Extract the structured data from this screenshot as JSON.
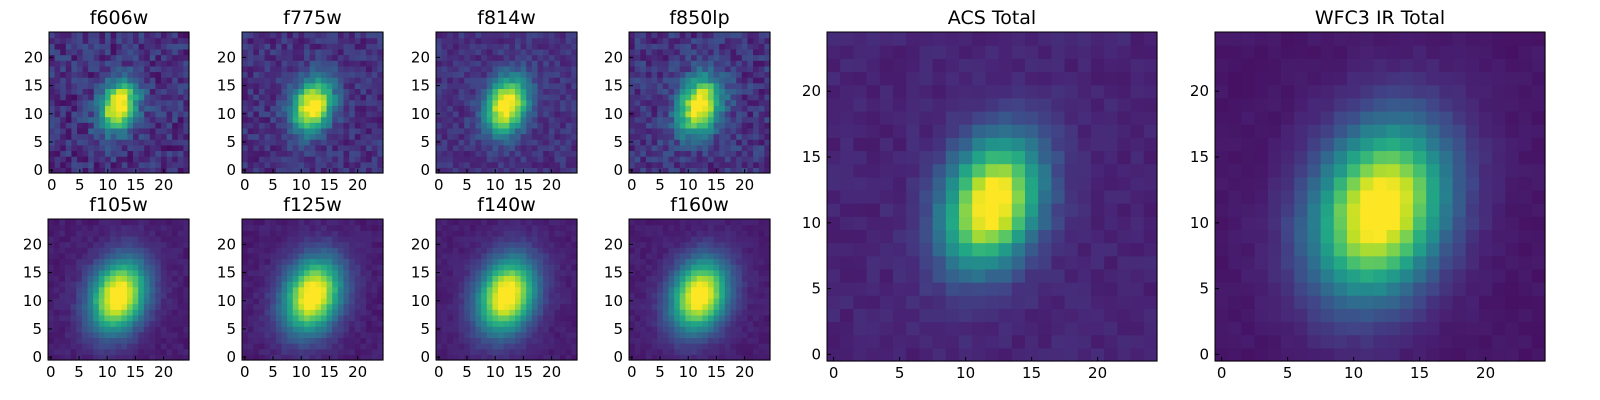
{
  "chart_data": {
    "type": "heatmap",
    "colormap": "viridis",
    "grid": false,
    "image_size": 25,
    "panels": [
      {
        "title": "f606w",
        "xticks": [
          "0",
          "5",
          "10",
          "15",
          "20"
        ],
        "yticks": [
          "0",
          "5",
          "10",
          "15",
          "20"
        ],
        "xlim": [
          0,
          25
        ],
        "ylim": [
          0,
          25
        ],
        "peak": [
          12,
          11.5
        ],
        "sigma": [
          2.2,
          3.3
        ],
        "noise": 0.22,
        "bg": 0.14,
        "seed": 11
      },
      {
        "title": "f775w",
        "xticks": [
          "0",
          "5",
          "10",
          "15",
          "20"
        ],
        "yticks": [
          "0",
          "5",
          "10",
          "15",
          "20"
        ],
        "xlim": [
          0,
          25
        ],
        "ylim": [
          0,
          25
        ],
        "peak": [
          12,
          11.5
        ],
        "sigma": [
          2.4,
          3.4
        ],
        "noise": 0.17,
        "bg": 0.14,
        "seed": 22
      },
      {
        "title": "f814w",
        "xticks": [
          "0",
          "5",
          "10",
          "15",
          "20"
        ],
        "yticks": [
          "0",
          "5",
          "10",
          "15",
          "20"
        ],
        "xlim": [
          0,
          25
        ],
        "ylim": [
          0,
          25
        ],
        "peak": [
          12,
          11.5
        ],
        "sigma": [
          2.5,
          3.6
        ],
        "noise": 0.14,
        "bg": 0.14,
        "seed": 33
      },
      {
        "title": "f850lp",
        "xticks": [
          "0",
          "5",
          "10",
          "15",
          "20"
        ],
        "yticks": [
          "0",
          "5",
          "10",
          "15",
          "20"
        ],
        "xlim": [
          0,
          25
        ],
        "ylim": [
          0,
          25
        ],
        "peak": [
          12,
          11.5
        ],
        "sigma": [
          2.5,
          3.6
        ],
        "noise": 0.2,
        "bg": 0.15,
        "seed": 44
      },
      {
        "title": "f105w",
        "xticks": [
          "0",
          "5",
          "10",
          "15",
          "20"
        ],
        "yticks": [
          "0",
          "5",
          "10",
          "15",
          "20"
        ],
        "xlim": [
          0,
          25
        ],
        "ylim": [
          0,
          25
        ],
        "peak": [
          12,
          11
        ],
        "sigma": [
          3.3,
          4.6
        ],
        "noise": 0.06,
        "bg": 0.08,
        "seed": 55
      },
      {
        "title": "f125w",
        "xticks": [
          "0",
          "5",
          "10",
          "15",
          "20"
        ],
        "yticks": [
          "0",
          "5",
          "10",
          "15",
          "20"
        ],
        "xlim": [
          0,
          25
        ],
        "ylim": [
          0,
          25
        ],
        "peak": [
          12,
          11
        ],
        "sigma": [
          3.4,
          4.7
        ],
        "noise": 0.06,
        "bg": 0.08,
        "seed": 66
      },
      {
        "title": "f140w",
        "xticks": [
          "0",
          "5",
          "10",
          "15",
          "20"
        ],
        "yticks": [
          "0",
          "5",
          "10",
          "15",
          "20"
        ],
        "xlim": [
          0,
          25
        ],
        "ylim": [
          0,
          25
        ],
        "peak": [
          12,
          11
        ],
        "sigma": [
          3.4,
          4.7
        ],
        "noise": 0.05,
        "bg": 0.08,
        "seed": 77
      },
      {
        "title": "f160w",
        "xticks": [
          "0",
          "5",
          "10",
          "15",
          "20"
        ],
        "yticks": [
          "0",
          "5",
          "10",
          "15",
          "20"
        ],
        "xlim": [
          0,
          25
        ],
        "ylim": [
          0,
          25
        ],
        "peak": [
          12,
          11
        ],
        "sigma": [
          3.3,
          4.5
        ],
        "noise": 0.05,
        "bg": 0.08,
        "seed": 88
      },
      {
        "title": "ACS Total",
        "xticks": [
          "0",
          "5",
          "10",
          "15",
          "20"
        ],
        "yticks": [
          "0",
          "5",
          "10",
          "15",
          "20"
        ],
        "xlim": [
          0,
          25
        ],
        "ylim": [
          0,
          25
        ],
        "peak": [
          12,
          11.5
        ],
        "sigma": [
          2.4,
          3.5
        ],
        "noise": 0.06,
        "bg": 0.1,
        "seed": 99
      },
      {
        "title": "WFC3 IR Total",
        "xticks": [
          "0",
          "5",
          "10",
          "15",
          "20"
        ],
        "yticks": [
          "0",
          "5",
          "10",
          "15",
          "20"
        ],
        "xlim": [
          0,
          25
        ],
        "ylim": [
          0,
          25
        ],
        "peak": [
          12,
          11
        ],
        "sigma": [
          3.3,
          4.6
        ],
        "noise": 0.03,
        "bg": 0.06,
        "seed": 123
      }
    ]
  }
}
